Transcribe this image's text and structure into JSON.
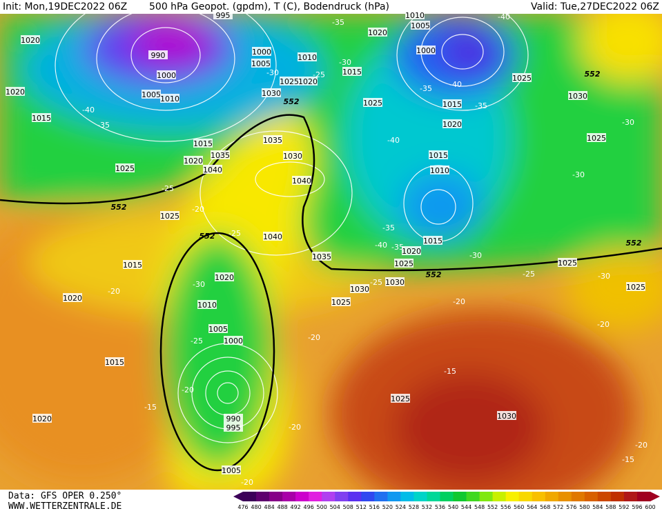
{
  "header": {
    "init": "Init: Mon,19DEC2022 06Z",
    "title": "500 hPa Geopot. (gpdm), T (C), Bodendruck (hPa)",
    "valid": "Valid: Tue,27DEC2022 06Z"
  },
  "footer": {
    "data": "Data: GFS OPER 0.250°",
    "site": "WWW.WETTERZENTRALE.DE"
  },
  "colorbar": {
    "ticks": [
      476,
      480,
      484,
      488,
      492,
      496,
      500,
      504,
      508,
      512,
      516,
      520,
      524,
      528,
      532,
      536,
      540,
      544,
      548,
      552,
      556,
      560,
      564,
      568,
      572,
      576,
      580,
      584,
      588,
      592,
      596,
      600
    ],
    "colors": [
      "#3c0058",
      "#5e006e",
      "#860088",
      "#a800a8",
      "#cc00cc",
      "#e020e0",
      "#b040f0",
      "#8040f0",
      "#5a30f0",
      "#3048f0",
      "#2070f0",
      "#1098f0",
      "#00bce8",
      "#00d4c8",
      "#00d898",
      "#00d060",
      "#10c830",
      "#40d820",
      "#80e810",
      "#c8f000",
      "#f8f000",
      "#f8d800",
      "#f8c000",
      "#f0a800",
      "#e89000",
      "#e07800",
      "#d86000",
      "#cc4800",
      "#c03000",
      "#b01818",
      "#a00020"
    ]
  },
  "map": {
    "pressure_labels": [
      "995",
      "990",
      "1000",
      "1005",
      "1010",
      "1020",
      "1020",
      "1015",
      "1025",
      "1015",
      "1020",
      "1035",
      "1040",
      "1000",
      "1005",
      "1010",
      "1025",
      "1020",
      "1030",
      "1035",
      "1030",
      "1040",
      "1015",
      "1020",
      "1010",
      "1005",
      "1000",
      "1025",
      "1030",
      "1025",
      "1015",
      "1020",
      "1025",
      "1015",
      "1010",
      "1015",
      "1020",
      "1025",
      "1030",
      "1030",
      "1035",
      "1040",
      "1025",
      "1015",
      "1020",
      "1020",
      "1010",
      "1005",
      "1000",
      "990",
      "995",
      "1005",
      "1015",
      "1020",
      "1025",
      "1025",
      "1030",
      "1025",
      "1025"
    ],
    "temperature_labels": [
      "-35",
      "-40",
      "-30",
      "-25",
      "-30",
      "-40",
      "-35",
      "-35",
      "-40",
      "-35",
      "-40",
      "-30",
      "-30",
      "-25",
      "-20",
      "-25",
      "-35",
      "-40",
      "-35",
      "-30",
      "-25",
      "-30",
      "-25",
      "-20",
      "-20",
      "-30",
      "-25",
      "-20",
      "-20",
      "-15",
      "-20",
      "-20",
      "-15",
      "-20",
      "-15",
      "-20"
    ],
    "contour_labels": [
      "552",
      "552",
      "552",
      "552",
      "552",
      "552"
    ]
  }
}
